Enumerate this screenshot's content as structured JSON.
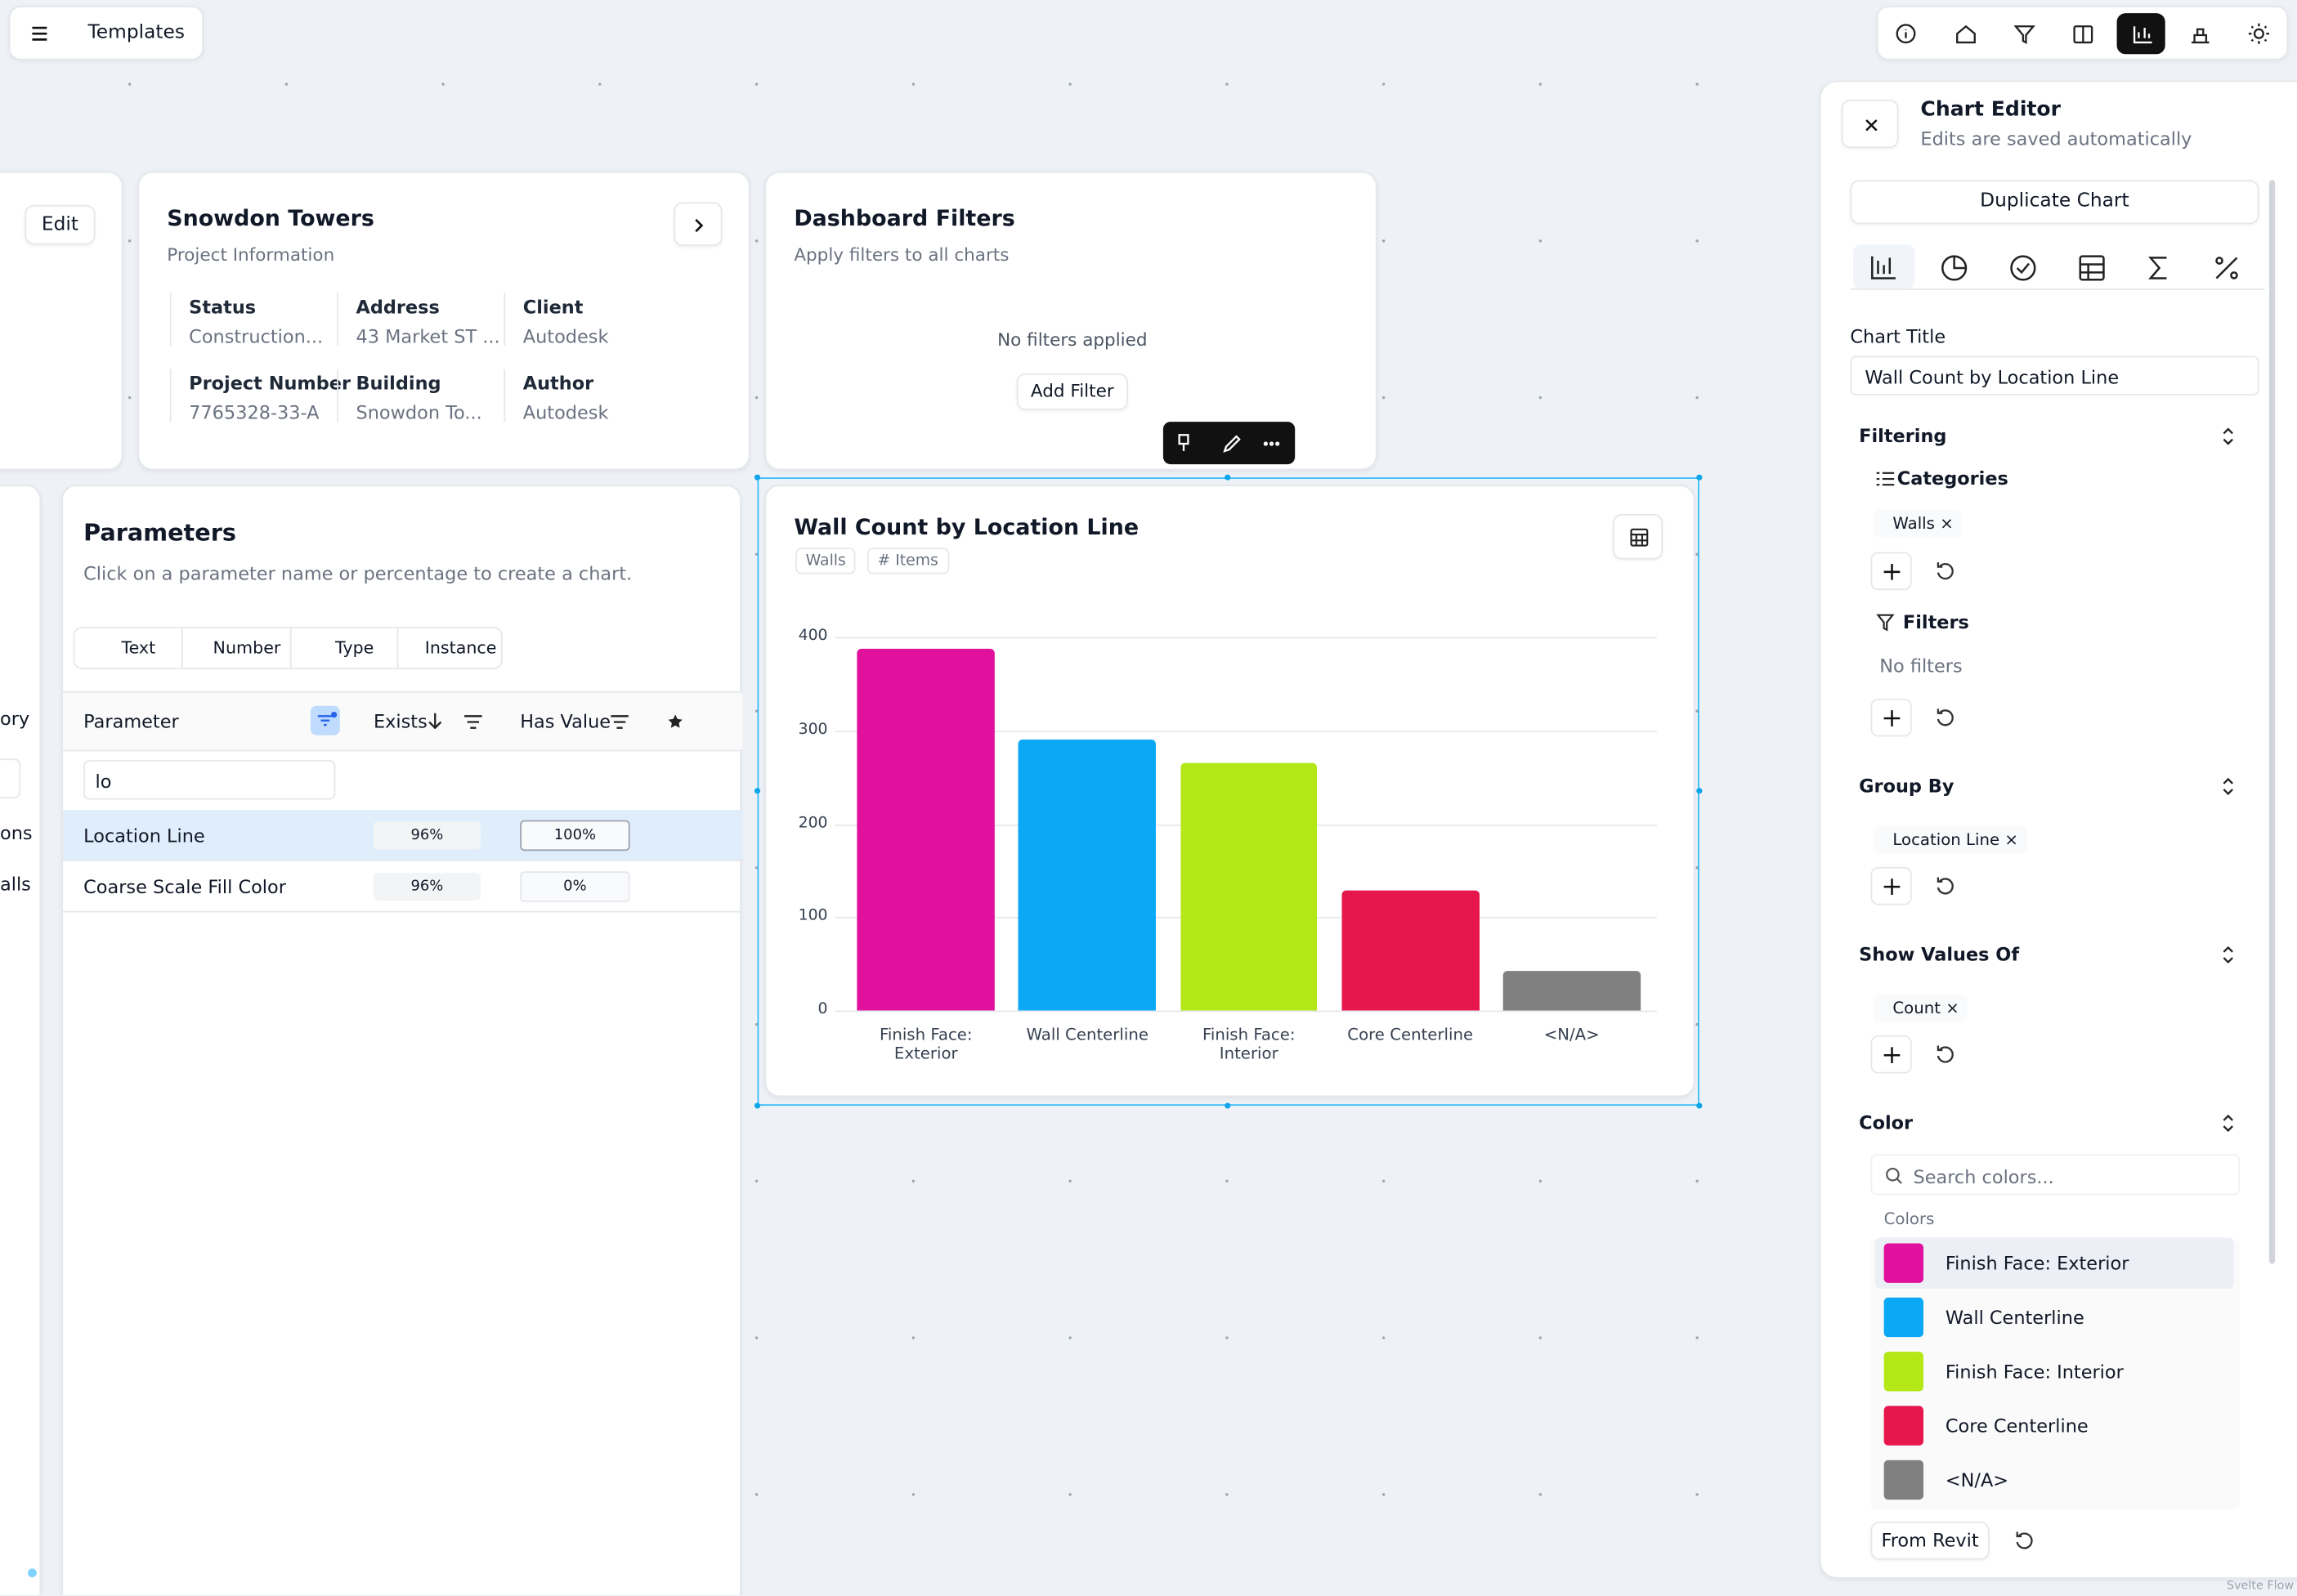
{
  "topbar": {
    "title": "Templates"
  },
  "project_card": {
    "edit": "Edit",
    "title": "Snowdon Towers",
    "subtitle": "Project Information",
    "fields": [
      {
        "label": "Status",
        "value": "Construction..."
      },
      {
        "label": "Address",
        "value": "43 Market ST ..."
      },
      {
        "label": "Client",
        "value": "Autodesk"
      },
      {
        "label": "Project Number",
        "value": "7765328-33-A"
      },
      {
        "label": "Building",
        "value": "Snowdon To..."
      },
      {
        "label": "Author",
        "value": "Autodesk"
      }
    ]
  },
  "filters_card": {
    "title": "Dashboard Filters",
    "subtitle": "Apply filters to all charts",
    "empty": "No filters applied",
    "button": "Add Filter"
  },
  "parameters": {
    "title": "Parameters",
    "subtitle": "Click on a parameter name or percentage to create a chart.",
    "tabs": [
      "Text",
      "Number",
      "Type",
      "Instance"
    ],
    "columns": [
      "Parameter",
      "Exists",
      "Has Value"
    ],
    "search": "lo",
    "rows": [
      [
        "Location Line",
        "96%",
        "100%"
      ],
      [
        "Coarse Scale Fill Color",
        "96%",
        "0%"
      ]
    ],
    "side_fragments": [
      "ory",
      "ons",
      "alls"
    ]
  },
  "chart": {
    "type": "bar",
    "title": "Wall Count by Location Line",
    "tags": [
      "Walls",
      "# Items"
    ],
    "categories": [
      "Finish Face: Exterior",
      "Wall Centerline",
      "Finish Face: Interior",
      "Core Centerline",
      "<N/A>"
    ],
    "values": [
      387,
      290,
      265,
      129,
      42
    ],
    "colors": [
      "#e0119c",
      "#0aa8f5",
      "#b3e716",
      "#e5174d",
      "#808080"
    ],
    "ylim": [
      0,
      400
    ],
    "yticks": [
      0,
      100,
      200,
      300,
      400
    ],
    "grid": true
  },
  "editor": {
    "title": "Chart Editor",
    "subtitle": "Edits are saved automatically",
    "duplicate": "Duplicate Chart",
    "chart_title_label": "Chart Title",
    "chart_title_value": "Wall Count by Location Line",
    "filtering": "Filtering",
    "categories_label": "Categories",
    "categories": [
      "Walls"
    ],
    "filters_label": "Filters",
    "filters_empty": "No filters",
    "group_by": "Group By",
    "group_by_items": [
      "Location Line"
    ],
    "show_values": "Show Values Of",
    "show_values_items": [
      "Count"
    ],
    "color": "Color",
    "color_search": "Search colors...",
    "colors_label": "Colors",
    "color_items": [
      {
        "name": "Finish Face: Exterior",
        "color": "#e0119c"
      },
      {
        "name": "Wall Centerline",
        "color": "#0aa8f5"
      },
      {
        "name": "Finish Face: Interior",
        "color": "#b3e716"
      },
      {
        "name": "Core Centerline",
        "color": "#e5174d"
      },
      {
        "name": "<N/A>",
        "color": "#808080"
      }
    ],
    "from_revit": "From Revit"
  },
  "footer": "Svelte Flow"
}
